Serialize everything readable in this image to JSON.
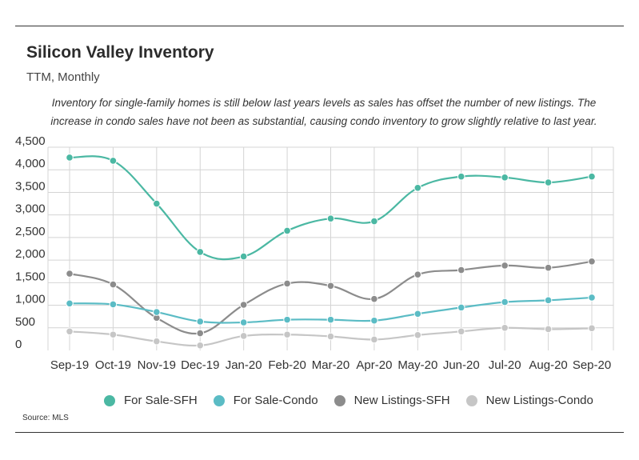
{
  "title": "Silicon Valley Inventory",
  "subtitle": "TTM, Monthly",
  "note": "Inventory for single-family homes is still below last years levels as sales has offset the number of new listings. The increase in condo sales have not been as substantial, causing condo inventory to grow slightly relative to last year.",
  "source": "Source:  MLS",
  "chart_data": {
    "type": "line",
    "categories": [
      "Sep-19",
      "Oct-19",
      "Nov-19",
      "Dec-19",
      "Jan-20",
      "Feb-20",
      "Mar-20",
      "Apr-20",
      "May-20",
      "Jun-20",
      "Jul-20",
      "Aug-20",
      "Sep-20"
    ],
    "ylim": [
      0,
      4500
    ],
    "yticks": [
      0,
      500,
      1000,
      1500,
      2000,
      2500,
      3000,
      3500,
      4000,
      4500
    ],
    "ytick_labels": [
      "0",
      "500",
      "1,000",
      "1,500",
      "2,000",
      "2,500",
      "3,000",
      "3,500",
      "4,000",
      "4,500"
    ],
    "grid": true,
    "legend_position": "bottom",
    "series": [
      {
        "name": "For Sale-SFH",
        "color": "#4bb8a3",
        "values": [
          4270,
          4200,
          3250,
          2180,
          2080,
          2650,
          2920,
          2860,
          3600,
          3850,
          3830,
          3720,
          3850
        ]
      },
      {
        "name": "For Sale-Condo",
        "color": "#5bbcc5",
        "values": [
          1040,
          1020,
          850,
          640,
          620,
          680,
          680,
          660,
          810,
          950,
          1070,
          1110,
          1170
        ]
      },
      {
        "name": "New Listings-SFH",
        "color": "#8c8c8c",
        "values": [
          1700,
          1460,
          720,
          380,
          1010,
          1480,
          1430,
          1140,
          1680,
          1780,
          1880,
          1830,
          1970
        ]
      },
      {
        "name": "New Listings-Condo",
        "color": "#c6c6c6",
        "values": [
          420,
          350,
          200,
          110,
          320,
          350,
          310,
          240,
          340,
          420,
          500,
          470,
          490
        ]
      }
    ]
  }
}
